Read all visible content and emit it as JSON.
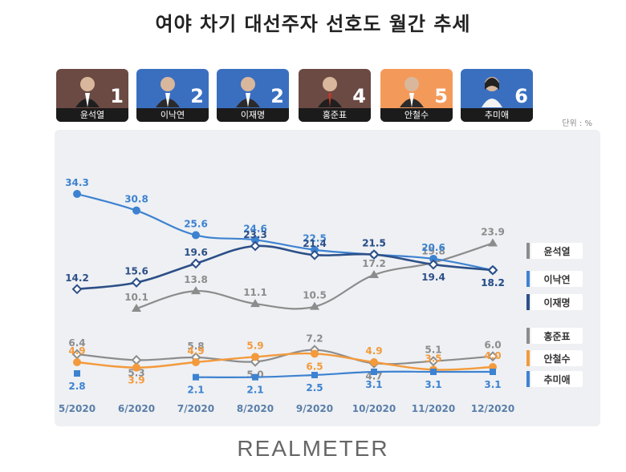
{
  "title": "여야 차기 대선주자 선호도 월간 추세",
  "unit": "단위 : %",
  "brand": "REALMETER",
  "candidates": [
    {
      "name": "윤석열",
      "rank": "1",
      "bg": "#6b4a44"
    },
    {
      "name": "이낙연",
      "rank": "2",
      "bg": "#3a6fc0"
    },
    {
      "name": "이재명",
      "rank": "2",
      "bg": "#3a6fc0"
    },
    {
      "name": "홍준표",
      "rank": "4",
      "bg": "#6b4a44"
    },
    {
      "name": "안철수",
      "rank": "5",
      "bg": "#f39a5a"
    },
    {
      "name": "추미애",
      "rank": "6",
      "bg": "#3a6fc0"
    }
  ],
  "chart_data": {
    "type": "line",
    "categories": [
      "5/2020",
      "6/2020",
      "7/2020",
      "8/2020",
      "9/2020",
      "10/2020",
      "11/2020",
      "12/2020"
    ],
    "series": [
      {
        "name": "윤석열",
        "color": "#8c8c8c",
        "values": [
          null,
          10.1,
          13.8,
          11.1,
          10.5,
          17.2,
          19.8,
          23.9
        ]
      },
      {
        "name": "이낙연",
        "color": "#3d82d1",
        "values": [
          34.3,
          30.8,
          25.6,
          24.6,
          22.5,
          21.5,
          20.6,
          18.2
        ]
      },
      {
        "name": "이재명",
        "color": "#2c4f87",
        "values": [
          14.2,
          15.6,
          19.6,
          23.3,
          21.4,
          21.5,
          19.4,
          18.2
        ]
      },
      {
        "name": "홍준표",
        "color": "#8c8c8c",
        "values": [
          6.4,
          5.3,
          5.8,
          5.0,
          7.2,
          4.7,
          5.1,
          6.0
        ]
      },
      {
        "name": "안철수",
        "color": "#f39a3c",
        "values": [
          4.9,
          3.9,
          4.9,
          5.9,
          6.5,
          4.9,
          3.5,
          4.0
        ]
      },
      {
        "name": "추미애",
        "color": "#3d82d1",
        "values": [
          2.8,
          null,
          2.1,
          2.1,
          2.5,
          3.1,
          3.1,
          3.1
        ]
      }
    ]
  }
}
